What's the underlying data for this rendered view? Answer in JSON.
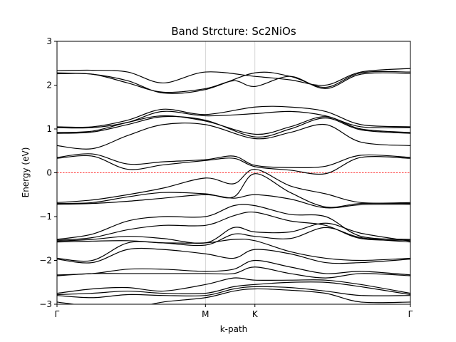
{
  "chart_data": {
    "type": "line",
    "title": "Band Strcture: Sc2NiOs",
    "xlabel": "k-path",
    "ylabel": "Energy (eV)",
    "xlim": [
      0,
      5.0
    ],
    "ylim": [
      -3,
      3
    ],
    "yticks": [
      -3,
      -2,
      -1,
      0,
      1,
      2,
      3
    ],
    "ytick_labels": [
      "−3",
      "−2",
      "−1",
      "0",
      "1",
      "2",
      "3"
    ],
    "high_symmetry_points": [
      {
        "label": "Γ",
        "x": 0.0
      },
      {
        "label": "M",
        "x": 2.1
      },
      {
        "label": "K",
        "x": 2.8
      },
      {
        "label": "Γ",
        "x": 5.0
      }
    ],
    "fermi_level": 0,
    "fermi_color": "#ff0000",
    "band_color": "#000000",
    "bands": [
      {
        "x": [
          0,
          0.5,
          1.0,
          1.5,
          2.1,
          2.8,
          3.3,
          3.8,
          4.3,
          5.0
        ],
        "y": [
          2.33,
          2.34,
          2.3,
          2.05,
          2.3,
          2.2,
          2.12,
          2.0,
          2.3,
          2.38
        ]
      },
      {
        "x": [
          0,
          0.5,
          1.0,
          1.5,
          2.1,
          2.8,
          3.3,
          3.8,
          4.3,
          5.0
        ],
        "y": [
          2.28,
          2.25,
          2.1,
          1.82,
          1.9,
          2.28,
          2.2,
          1.95,
          2.28,
          2.3
        ]
      },
      {
        "x": [
          0,
          0.5,
          1.0,
          1.5,
          2.1,
          2.5,
          2.8,
          3.3,
          3.8,
          4.3,
          5.0
        ],
        "y": [
          2.26,
          2.25,
          2.05,
          1.84,
          1.92,
          2.1,
          1.97,
          2.2,
          1.92,
          2.25,
          2.27
        ]
      },
      {
        "x": [
          0,
          0.5,
          1.0,
          1.5,
          2.1,
          2.8,
          3.3,
          3.8,
          4.3,
          5.0
        ],
        "y": [
          1.05,
          1.05,
          1.2,
          1.45,
          1.33,
          1.5,
          1.5,
          1.4,
          1.1,
          1.05
        ]
      },
      {
        "x": [
          0,
          0.5,
          1.0,
          1.5,
          2.1,
          2.8,
          3.3,
          3.8,
          4.3,
          5.0
        ],
        "y": [
          1.03,
          1.03,
          1.15,
          1.4,
          1.3,
          1.35,
          1.4,
          1.3,
          1.05,
          1.03
        ]
      },
      {
        "x": [
          0,
          0.5,
          1.0,
          1.5,
          2.1,
          2.8,
          3.3,
          3.8,
          4.3,
          5.0
        ],
        "y": [
          0.92,
          0.95,
          1.15,
          1.3,
          1.18,
          0.88,
          1.05,
          1.28,
          1.0,
          0.92
        ]
      },
      {
        "x": [
          0,
          0.5,
          1.0,
          1.5,
          2.1,
          2.8,
          3.3,
          3.8,
          4.3,
          5.0
        ],
        "y": [
          0.9,
          0.93,
          1.1,
          1.28,
          1.2,
          0.82,
          1.0,
          1.25,
          0.98,
          0.9
        ]
      },
      {
        "x": [
          0,
          0.5,
          1.0,
          1.5,
          2.1,
          2.8,
          3.3,
          3.8,
          4.3,
          5.0
        ],
        "y": [
          0.62,
          0.55,
          0.85,
          1.1,
          1.1,
          0.78,
          0.92,
          1.1,
          0.7,
          0.62
        ]
      },
      {
        "x": [
          0,
          0.5,
          1.0,
          1.5,
          2.1,
          2.5,
          2.8,
          3.3,
          3.8,
          4.3,
          5.0
        ],
        "y": [
          0.35,
          0.43,
          0.2,
          0.25,
          0.3,
          0.38,
          0.17,
          0.12,
          0.15,
          0.4,
          0.35
        ]
      },
      {
        "x": [
          0,
          0.5,
          1.0,
          1.5,
          2.1,
          2.5,
          2.8,
          3.3,
          3.8,
          4.3,
          5.0
        ],
        "y": [
          0.33,
          0.38,
          0.08,
          0.18,
          0.28,
          0.33,
          0.14,
          0.06,
          -0.02,
          0.35,
          0.33
        ]
      },
      {
        "x": [
          0,
          0.5,
          1.0,
          1.5,
          2.1,
          2.5,
          2.8,
          3.3,
          3.8,
          4.3,
          5.0
        ],
        "y": [
          -0.68,
          -0.62,
          -0.5,
          -0.35,
          -0.12,
          -0.25,
          0.08,
          -0.3,
          -0.48,
          -0.68,
          -0.68
        ]
      },
      {
        "x": [
          0,
          0.5,
          1.0,
          1.5,
          2.1,
          2.5,
          2.8,
          3.3,
          3.8,
          4.3,
          5.0
        ],
        "y": [
          -0.7,
          -0.68,
          -0.55,
          -0.45,
          -0.48,
          -0.55,
          -0.02,
          -0.45,
          -0.78,
          -0.7,
          -0.7
        ]
      },
      {
        "x": [
          0,
          0.5,
          1.0,
          1.5,
          2.1,
          2.5,
          2.8,
          3.3,
          3.8,
          4.3,
          5.0
        ],
        "y": [
          -0.72,
          -0.7,
          -0.65,
          -0.58,
          -0.5,
          -0.58,
          -0.5,
          -0.6,
          -0.8,
          -0.73,
          -0.72
        ]
      },
      {
        "x": [
          0,
          0.5,
          1.0,
          1.5,
          2.1,
          2.5,
          2.8,
          3.3,
          3.8,
          4.3,
          5.0
        ],
        "y": [
          -1.52,
          -1.4,
          -1.1,
          -1.0,
          -1.0,
          -0.75,
          -0.75,
          -0.95,
          -1.0,
          -1.45,
          -1.52
        ]
      },
      {
        "x": [
          0,
          0.5,
          1.0,
          1.5,
          2.1,
          2.5,
          2.8,
          3.3,
          3.8,
          4.3,
          5.0
        ],
        "y": [
          -1.54,
          -1.48,
          -1.3,
          -1.2,
          -1.2,
          -0.98,
          -0.9,
          -1.1,
          -1.2,
          -1.5,
          -1.54
        ]
      },
      {
        "x": [
          0,
          0.5,
          1.0,
          1.5,
          2.1,
          2.5,
          2.8,
          3.3,
          3.8,
          4.3,
          5.0
        ],
        "y": [
          -1.56,
          -1.52,
          -1.45,
          -1.5,
          -1.6,
          -1.25,
          -1.35,
          -1.35,
          -1.15,
          -1.38,
          -1.56
        ]
      },
      {
        "x": [
          0,
          0.5,
          1.0,
          1.5,
          2.1,
          2.5,
          2.8,
          3.3,
          3.8,
          4.3,
          5.0
        ],
        "y": [
          -1.58,
          -1.56,
          -1.55,
          -1.6,
          -1.65,
          -1.4,
          -1.45,
          -1.5,
          -1.25,
          -1.48,
          -1.58
        ]
      },
      {
        "x": [
          0,
          0.5,
          1.0,
          1.5,
          2.1,
          2.5,
          2.8,
          3.3,
          3.8,
          4.3,
          5.0
        ],
        "y": [
          -1.95,
          -2.0,
          -1.6,
          -1.6,
          -1.6,
          -1.52,
          -1.55,
          -1.8,
          -1.95,
          -2.0,
          -1.95
        ]
      },
      {
        "x": [
          0,
          0.5,
          1.0,
          1.5,
          2.1,
          2.5,
          2.8,
          3.3,
          3.8,
          4.3,
          5.0
        ],
        "y": [
          -1.97,
          -2.05,
          -1.75,
          -1.75,
          -1.85,
          -1.95,
          -1.75,
          -1.85,
          -2.05,
          -2.05,
          -1.97
        ]
      },
      {
        "x": [
          0,
          0.5,
          1.0,
          1.5,
          2.1,
          2.5,
          2.8,
          3.3,
          3.8,
          4.3,
          5.0
        ],
        "y": [
          -2.33,
          -2.3,
          -2.2,
          -2.2,
          -2.25,
          -2.2,
          -2.0,
          -2.15,
          -2.3,
          -2.25,
          -2.33
        ]
      },
      {
        "x": [
          0,
          0.5,
          1.0,
          1.5,
          2.1,
          2.5,
          2.8,
          3.3,
          3.8,
          4.3,
          5.0
        ],
        "y": [
          -2.35,
          -2.3,
          -2.3,
          -2.3,
          -2.3,
          -2.3,
          -2.15,
          -2.3,
          -2.4,
          -2.3,
          -2.35
        ]
      },
      {
        "x": [
          0,
          0.5,
          1.0,
          1.5,
          2.1,
          2.5,
          2.8,
          3.3,
          3.8,
          4.3,
          5.0
        ],
        "y": [
          -2.75,
          -2.65,
          -2.62,
          -2.7,
          -2.55,
          -2.4,
          -2.45,
          -2.45,
          -2.45,
          -2.55,
          -2.75
        ]
      },
      {
        "x": [
          0,
          0.5,
          1.0,
          1.5,
          2.1,
          2.5,
          2.8,
          3.3,
          3.8,
          4.3,
          5.0
        ],
        "y": [
          -2.78,
          -2.75,
          -2.7,
          -2.75,
          -2.75,
          -2.6,
          -2.55,
          -2.5,
          -2.5,
          -2.6,
          -2.78
        ]
      },
      {
        "x": [
          0,
          0.5,
          1.0,
          1.5,
          2.1,
          2.5,
          2.8,
          3.3,
          3.8,
          4.3,
          5.0
        ],
        "y": [
          -2.8,
          -2.85,
          -2.78,
          -2.8,
          -2.8,
          -2.65,
          -2.6,
          -2.62,
          -2.7,
          -2.8,
          -2.8
        ]
      },
      {
        "x": [
          0,
          0.5,
          1.0,
          1.5,
          2.1,
          2.5,
          2.8,
          3.3,
          3.8,
          4.3,
          5.0
        ],
        "y": [
          -2.95,
          -3.05,
          -3.1,
          -2.95,
          -2.85,
          -2.7,
          -2.65,
          -2.68,
          -2.75,
          -2.95,
          -2.95
        ]
      }
    ]
  }
}
